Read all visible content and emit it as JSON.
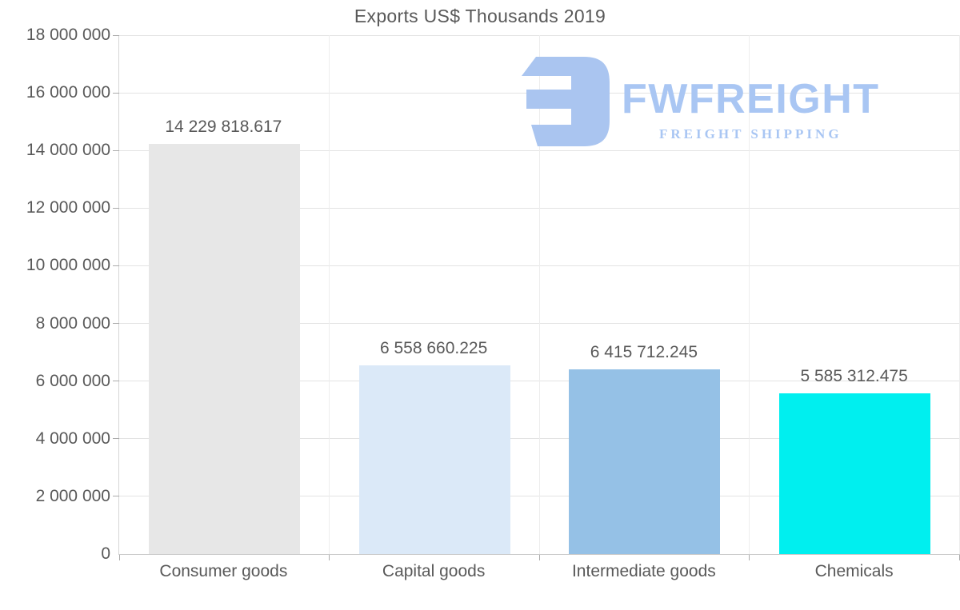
{
  "title": "Exports US$ Thousands 2019",
  "watermark": {
    "brand": "FWFREIGHT",
    "tagline": "FREIGHT SHIPPING",
    "color": "#a9c6f3"
  },
  "chart_data": {
    "type": "bar",
    "title": "Exports US$ Thousands 2019",
    "categories": [
      "Consumer goods",
      "Capital goods",
      "Intermediate goods",
      "Chemicals"
    ],
    "values": [
      14229818.617,
      6558660.225,
      6415712.245,
      5585312.475
    ],
    "value_labels": [
      "14 229 818.617",
      "6 558 660.225",
      "6 415 712.245",
      "5 585 312.475"
    ],
    "bar_colors": [
      "#e7e7e7",
      "#dbe9f8",
      "#95c1e6",
      "#00efef"
    ],
    "xlabel": "",
    "ylabel": "",
    "ylim": [
      0,
      18000000
    ],
    "ytick_step": 2000000,
    "ytick_labels": [
      "0",
      "2 000 000",
      "4 000 000",
      "6 000 000",
      "8 000 000",
      "10 000 000",
      "12 000 000",
      "14 000 000",
      "16 000 000",
      "18 000 000"
    ],
    "grid": true,
    "legend": false,
    "text_color": "#595959",
    "gridline_color": "#e3e3e3"
  }
}
